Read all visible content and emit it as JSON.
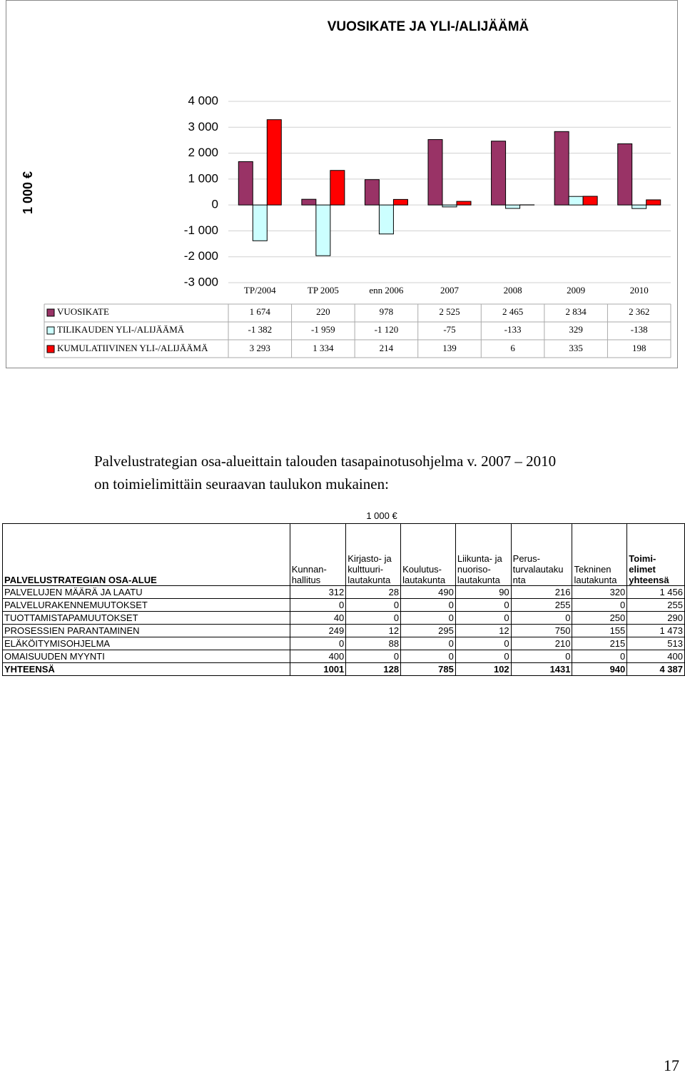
{
  "chart_data": {
    "type": "bar",
    "title": "VUOSIKATE JA YLI-/ALIJÄÄMÄ",
    "y_label": "1 000 €",
    "categories": [
      "TP/2004",
      "TP 2005",
      "enn 2006",
      "2007",
      "2008",
      "2009",
      "2010"
    ],
    "series": [
      {
        "name": "VUOSIKATE",
        "color": "#993366",
        "values": [
          1674,
          220,
          978,
          2525,
          2465,
          2834,
          2362
        ],
        "value_labels": [
          "1 674",
          "220",
          "978",
          "2 525",
          "2 465",
          "2 834",
          "2 362"
        ]
      },
      {
        "name": "TILIKAUDEN YLI-/ALIJÄÄMÄ",
        "color": "#ccffff",
        "values": [
          -1382,
          -1959,
          -1120,
          -75,
          -133,
          329,
          -138
        ],
        "value_labels": [
          "-1 382",
          "-1 959",
          "-1 120",
          "-75",
          "-133",
          "329",
          "-138"
        ]
      },
      {
        "name": "KUMULATIIVINEN YLI-/ALIJÄÄMÄ",
        "color": "#ff0000",
        "values": [
          3293,
          1334,
          214,
          139,
          6,
          335,
          198
        ],
        "value_labels": [
          "3 293",
          "1 334",
          "214",
          "139",
          "6",
          "335",
          "198"
        ]
      }
    ],
    "ylim": [
      -3000,
      4000
    ],
    "yticks": [
      {
        "value": -3000,
        "label": "-3 000"
      },
      {
        "value": -2000,
        "label": "-2 000"
      },
      {
        "value": -1000,
        "label": "-1 000"
      },
      0,
      {
        "value": 1000,
        "label": "1 000"
      },
      {
        "value": 2000,
        "label": "2 000"
      },
      {
        "value": 3000,
        "label": "3 000"
      },
      {
        "value": 4000,
        "label": "4 000"
      }
    ],
    "grid": true
  },
  "text": {
    "lines": [
      "Palvelustrategian osa-alueittain talouden tasapainotusohjelma v. 2007 – 2010",
      "on toimielimittäin seuraavan taulukon mukainen:"
    ]
  },
  "table": {
    "unit": "1 000 €",
    "header": [
      "PALVELUSTRATEGIAN OSA-ALUE",
      "Kunnan-\nhallitus",
      "Kirjasto- ja\nkulttuuri-\nlautakunta",
      "Koulutus-\nlautakunta",
      "Liikunta- ja\nnuoriso-\nlautakunta",
      "Perus-\nturvalautaku\nnta",
      "Tekninen\nlautakunta",
      "Toimi-\nelimet\nyhteensä"
    ],
    "rows": [
      [
        "PALVELUJEN MÄÄRÄ JA LAATU",
        "312",
        "28",
        "490",
        "90",
        "216",
        "320",
        "1 456"
      ],
      [
        "PALVELURAKENNEMUUTOKSET",
        "0",
        "0",
        "0",
        "0",
        "255",
        "0",
        "255"
      ],
      [
        "TUOTTAMISTAPAMUUTOKSET",
        "40",
        "0",
        "0",
        "0",
        "0",
        "250",
        "290"
      ],
      [
        "PROSESSIEN PARANTAMINEN",
        "249",
        "12",
        "295",
        "12",
        "750",
        "155",
        "1 473"
      ],
      [
        "ELÄKÖITYMISOHJELMA",
        "0",
        "88",
        "0",
        "0",
        "210",
        "215",
        "513"
      ],
      [
        "OMAISUUDEN MYYNTI",
        "400",
        "0",
        "0",
        "0",
        "0",
        "0",
        "400"
      ],
      [
        "YHTEENSÄ",
        "1001",
        "128",
        "785",
        "102",
        "1431",
        "940",
        "4 387"
      ]
    ]
  },
  "page_number": "17"
}
